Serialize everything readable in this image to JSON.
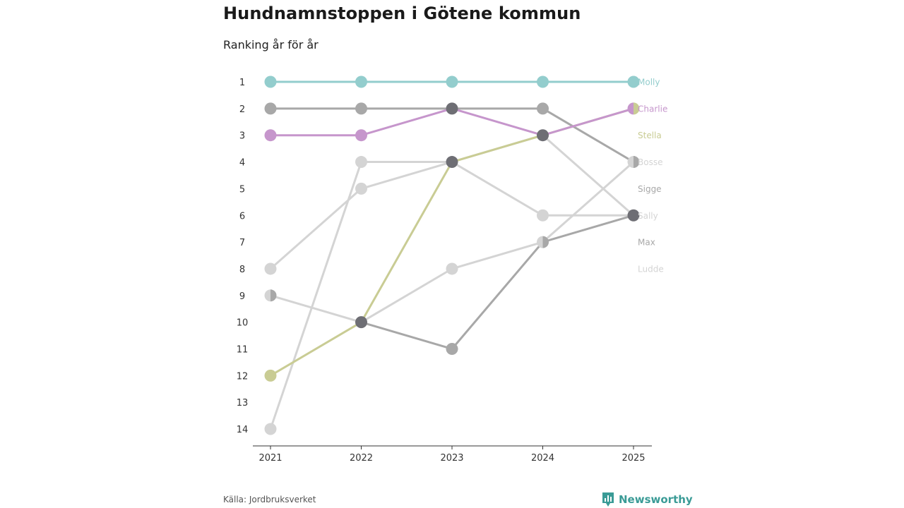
{
  "title": "Hundnamnstoppen i Götene kommun",
  "subtitle": "Ranking år för år",
  "source": "Källa: Jordbruksverket",
  "brand": {
    "name": "Newsworthy",
    "icon": "bar-chart-logo-icon",
    "color": "#3a9b96"
  },
  "chart_data": {
    "type": "line",
    "title": "Hundnamnstoppen i Götene kommun",
    "subtitle": "Ranking år för år",
    "xlabel": "",
    "ylabel": "",
    "categories": [
      "2021",
      "2022",
      "2023",
      "2024",
      "2025"
    ],
    "yticks": [
      "1",
      "2",
      "3",
      "4",
      "5",
      "6",
      "7",
      "8",
      "9",
      "10",
      "11",
      "12",
      "13",
      "14"
    ],
    "ylim": [
      1,
      14
    ],
    "y_inverted": true,
    "series": [
      {
        "name": "Ludde",
        "values": [
          14,
          4,
          4,
          6,
          6
        ],
        "color": "#d4d4d4",
        "label_color": "#d4d4d4"
      },
      {
        "name": "Sally",
        "values": [
          8,
          5,
          4,
          3,
          6
        ],
        "color": "#d4d4d4",
        "label_color": "#d4d4d4"
      },
      {
        "name": "Bosse",
        "values": [
          9,
          10,
          8,
          7,
          4
        ],
        "color": "#d4d4d4",
        "label_color": "#d4d4d4"
      },
      {
        "name": "Max",
        "values": [
          null,
          10,
          11,
          7,
          6
        ],
        "color": "#a8a8a8",
        "label_color": "#a8a8a8"
      },
      {
        "name": "Sigge",
        "values": [
          2,
          2,
          2,
          2,
          4
        ],
        "color": "#a8a8a8",
        "label_color": "#a8a8a8"
      },
      {
        "name": "Stella",
        "values": [
          12,
          10,
          4,
          3,
          2
        ],
        "color": "#c9cc94",
        "label_color": "#c9cc94"
      },
      {
        "name": "Charlie",
        "values": [
          3,
          3,
          2,
          3,
          2
        ],
        "color": "#c696cc",
        "label_color": "#c696cc"
      },
      {
        "name": "Molly",
        "values": [
          1,
          1,
          1,
          1,
          1
        ],
        "color": "#93cdcd",
        "label_color": "#93cdcd"
      }
    ],
    "end_label_ranks": {
      "Molly": 1,
      "Charlie": 2,
      "Stella": 3,
      "Bosse": 4,
      "Sigge": 5,
      "Sally": 6,
      "Max": 7,
      "Ludde": 8
    },
    "overlap_color": "#6e6e74",
    "split_markers": [
      {
        "year": "2021",
        "rank": 9,
        "left": "#d4d4d4",
        "right": "#a8a8a8"
      },
      {
        "year": "2024",
        "rank": 7,
        "left": "#d4d4d4",
        "right": "#a8a8a8"
      },
      {
        "year": "2025",
        "rank": 2,
        "left": "#c696cc",
        "right": "#c9cc94"
      },
      {
        "year": "2025",
        "rank": 4,
        "left": "#d4d4d4",
        "right": "#a8a8a8"
      }
    ]
  }
}
